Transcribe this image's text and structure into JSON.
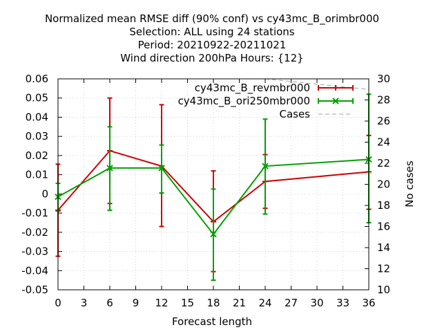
{
  "chart_data": {
    "type": "line",
    "title_lines": [
      "Normalized mean RMSE diff (90% conf) vs cy43mc_B_orimbr000",
      "Selection: ALL using    24 stations",
      "Period: 20210922-20211021",
      "Wind direction 200hPa   Hours: {12}"
    ],
    "xlabel": "Forecast length",
    "ylabel_right": "No cases",
    "xlim": [
      0,
      36
    ],
    "ylim": [
      -0.05,
      0.06
    ],
    "y2lim": [
      10,
      30
    ],
    "x_ticks": [
      0,
      3,
      6,
      9,
      12,
      15,
      18,
      21,
      24,
      27,
      30,
      33,
      36
    ],
    "y_ticks": [
      -0.05,
      -0.04,
      -0.03,
      -0.02,
      -0.01,
      0,
      0.01,
      0.02,
      0.03,
      0.04,
      0.05,
      0.06
    ],
    "y_tick_labels": [
      "-0.05",
      "-0.04",
      "-0.03",
      "-0.02",
      "-0.01",
      "0",
      "0.01",
      "0.02",
      "0.03",
      "0.04",
      "0.05",
      "0.06"
    ],
    "y2_ticks": [
      10,
      12,
      14,
      16,
      18,
      20,
      22,
      24,
      26,
      28,
      30
    ],
    "legend_position": "top-right",
    "series": [
      {
        "name": "cy43mc_B_revmbr000",
        "color": "#cc0000",
        "marker": "plus",
        "axis": "left",
        "x": [
          0,
          6,
          12,
          18,
          24,
          36
        ],
        "y": [
          -0.0085,
          0.0225,
          0.0145,
          -0.0145,
          0.0065,
          0.0115
        ],
        "err_low": [
          -0.0325,
          -0.005,
          -0.017,
          -0.0405,
          -0.0075,
          -0.008
        ],
        "err_high": [
          0.0155,
          0.05,
          0.0465,
          0.012,
          0.0205,
          0.0305
        ]
      },
      {
        "name": "cy43mc_B_ori250mbr000",
        "color": "#00a000",
        "marker": "cross",
        "axis": "left",
        "x": [
          0,
          6,
          12,
          18,
          24,
          36
        ],
        "y": [
          -0.0015,
          0.0135,
          0.0135,
          -0.021,
          0.0145,
          0.018
        ],
        "err_low": [
          -0.009,
          -0.0085,
          0.0005,
          -0.045,
          -0.0105,
          -0.015
        ],
        "err_high": [
          0.0055,
          0.035,
          0.0255,
          0.0025,
          0.039,
          0.052
        ]
      },
      {
        "name": "Cases",
        "color": "#a0a0a0",
        "style": "dashed",
        "axis": "right",
        "x": [
          0,
          6,
          12,
          18,
          24,
          30,
          36
        ],
        "y": [
          30,
          30,
          30,
          30,
          30,
          29.5,
          29.0
        ]
      }
    ]
  }
}
